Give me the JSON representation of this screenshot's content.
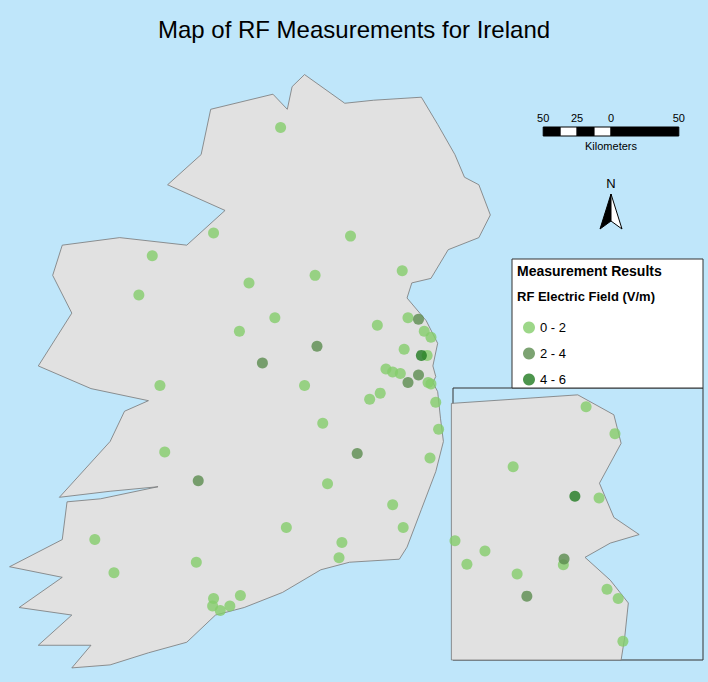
{
  "chart_data": {
    "type": "map",
    "title": "Map of RF Measurements for Ireland",
    "legend_title": "Measurement Results",
    "legend_subtitle": "RF Electric Field (V/m)",
    "north": "N",
    "scale_bar": {
      "unit": "Kilometers",
      "ticks": [
        {
          "value": -50,
          "label": "50"
        },
        {
          "value": -25,
          "label": "25"
        },
        0,
        50
      ]
    },
    "series": [
      {
        "name": "0 - 2",
        "color": "#84cd6c",
        "lon": [
          -7.62,
          -8.32,
          -6.89,
          -8.96,
          -6.35,
          -7.26,
          -9.1,
          -7.95,
          -7.68,
          -8.05,
          -6.61,
          -6.29,
          -6.12,
          -6.05,
          -6.33,
          -6.09,
          -8.88,
          -7.37,
          -6.52,
          -6.45,
          -6.37,
          -6.08,
          -6.05,
          -6.0,
          -6.69,
          -6.58,
          -7.18,
          -8.83,
          -5.97,
          -6.06,
          -7.13,
          -6.45,
          -7.56,
          -6.34,
          -6.98,
          -7.01,
          -9.56,
          -9.36,
          -8.5,
          -8.32,
          -8.33,
          -8.25,
          -8.15,
          -8.04
        ],
        "lat": [
          55.03,
          54.33,
          54.31,
          54.18,
          54.08,
          54.05,
          53.92,
          54.0,
          53.77,
          53.68,
          53.72,
          53.77,
          53.68,
          53.64,
          53.56,
          53.52,
          53.32,
          53.32,
          53.43,
          53.41,
          53.4,
          53.34,
          53.33,
          53.21,
          53.23,
          53.27,
          53.07,
          52.88,
          53.03,
          52.84,
          52.67,
          52.53,
          52.38,
          52.38,
          52.28,
          52.18,
          52.3,
          52.08,
          52.15,
          51.91,
          51.86,
          51.83,
          51.86,
          51.93
        ],
        "inset_lon": [
          -6.197,
          -6.117,
          -6.399,
          -6.161,
          -6.56,
          -6.477,
          -6.527,
          -6.388,
          -6.26,
          -6.139,
          -6.108,
          -6.095
        ],
        "inset_lat": [
          53.614,
          53.567,
          53.509,
          53.454,
          53.379,
          53.361,
          53.338,
          53.321,
          53.337,
          53.294,
          53.278,
          53.203
        ]
      },
      {
        "name": "2 - 4",
        "color": "#5b8c4f",
        "lon": [
          -6.18,
          -7.81,
          -7.24,
          -6.29,
          -6.18,
          -8.48,
          -6.82
        ],
        "lat": [
          53.76,
          53.47,
          53.58,
          53.34,
          53.39,
          52.69,
          52.87
        ],
        "inset_lon": [
          -6.258,
          -6.361
        ],
        "inset_lat": [
          53.347,
          53.282
        ]
      },
      {
        "name": "4 - 6",
        "color": "#217a21",
        "lon": [
          -6.15
        ],
        "lat": [
          53.52
        ],
        "inset_lon": [
          -6.228
        ],
        "inset_lat": [
          53.457
        ]
      }
    ]
  }
}
